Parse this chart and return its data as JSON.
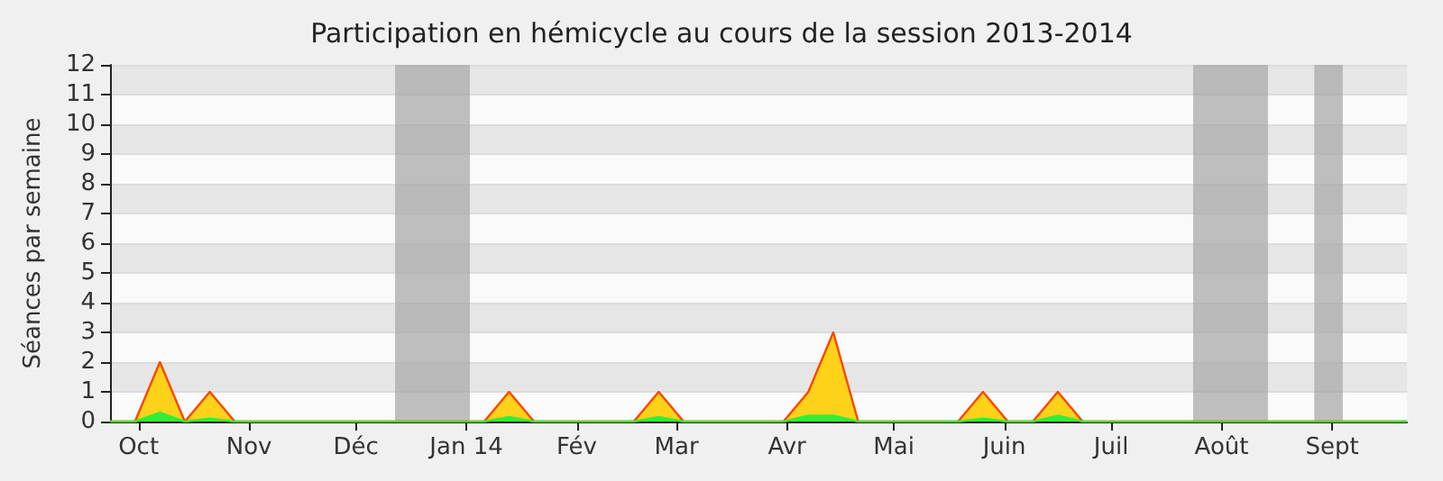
{
  "chart_data": {
    "type": "area",
    "title": "Participation en hémicycle au cours de la session 2013-2014",
    "ylabel": "Séances par semaine",
    "x": [
      "2013-09-23",
      "2013-09-30",
      "2013-10-07",
      "2013-10-14",
      "2013-10-21",
      "2013-10-28",
      "2014-01-06",
      "2014-01-13",
      "2014-01-20",
      "2014-02-17",
      "2014-02-24",
      "2014-03-03",
      "2014-03-31",
      "2014-04-07",
      "2014-04-14",
      "2014-04-21",
      "2014-05-19",
      "2014-05-26",
      "2014-06-02",
      "2014-06-09",
      "2014-06-16",
      "2014-06-23",
      "2014-09-22"
    ],
    "series": [
      {
        "color": "#ffd21a",
        "values": [
          0,
          0,
          2,
          0,
          1,
          0,
          0,
          1,
          0,
          0,
          1,
          0,
          0,
          1,
          3,
          0,
          0,
          1,
          0,
          0,
          1,
          0,
          0
        ]
      },
      {
        "color": "#33ee33",
        "values": [
          0,
          0,
          0.3,
          0,
          0.1,
          0,
          0,
          0.15,
          0,
          0,
          0.15,
          0,
          0,
          0.2,
          0.2,
          0,
          0,
          0.1,
          0,
          0,
          0.2,
          0,
          0
        ]
      }
    ],
    "xlim": [
      "2013-09-23",
      "2014-09-22"
    ],
    "xticks": [
      {
        "value": "2013-10-01",
        "label": "Oct"
      },
      {
        "value": "2013-11-01",
        "label": "Nov"
      },
      {
        "value": "2013-12-01",
        "label": "Déc"
      },
      {
        "value": "2014-01-01",
        "label": "Jan 14"
      },
      {
        "value": "2014-02-01",
        "label": "Fév"
      },
      {
        "value": "2014-03-01",
        "label": "Mar"
      },
      {
        "value": "2014-04-01",
        "label": "Avr"
      },
      {
        "value": "2014-05-01",
        "label": "Mai"
      },
      {
        "value": "2014-06-01",
        "label": "Juin"
      },
      {
        "value": "2014-07-01",
        "label": "Juil"
      },
      {
        "value": "2014-08-01",
        "label": "Août"
      },
      {
        "value": "2014-09-01",
        "label": "Sept"
      }
    ],
    "ylim": [
      0,
      12
    ],
    "yticks": [
      0,
      1,
      2,
      3,
      4,
      5,
      6,
      7,
      8,
      9,
      10,
      11,
      12
    ],
    "bands": [
      {
        "axis": "x",
        "from": "2013-12-12",
        "to": "2014-01-02",
        "color": "#aaaaaa"
      },
      {
        "axis": "x",
        "from": "2014-07-24",
        "to": "2014-08-14",
        "color": "#aaaaaa"
      },
      {
        "axis": "x",
        "from": "2014-08-27",
        "to": "2014-09-04",
        "color": "#aaaaaa"
      }
    ],
    "grid": "y"
  }
}
